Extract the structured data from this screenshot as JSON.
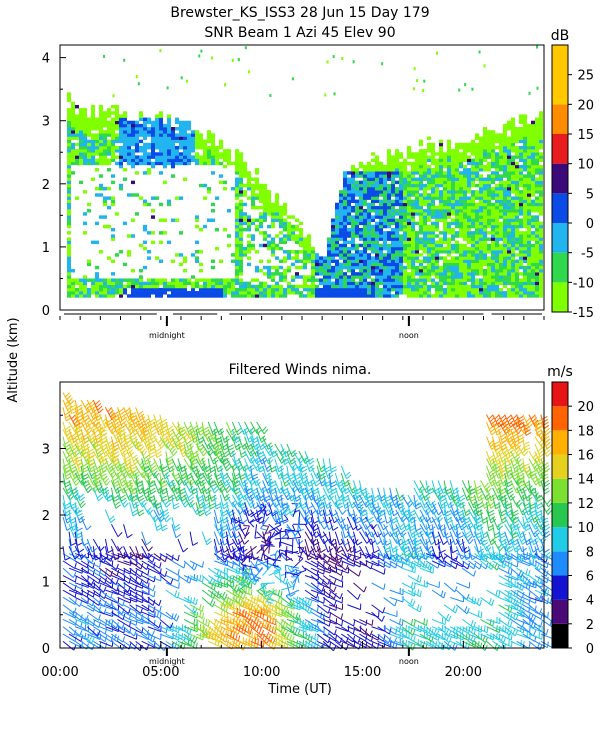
{
  "title": {
    "line1": "Brewster_KS_ISS3  28 Jun 15 Day 179",
    "line2": "SNR Beam 1 Azi  45 Elev 90"
  },
  "shared_ylabel": "Altitude (km)",
  "colors": {
    "snr": [
      "#7fff00",
      "#2fd84c",
      "#22b4ee",
      "#0a4be8",
      "#3a0a78",
      "#e81c1c",
      "#ff8c00",
      "#ffc800"
    ],
    "wind": [
      "#000000",
      "#4a0a78",
      "#1414d2",
      "#1e8cff",
      "#20cce6",
      "#28c850",
      "#7ce030",
      "#e6d21e",
      "#ffb000",
      "#ff6400",
      "#e61414"
    ]
  },
  "chart_data": [
    {
      "type": "heatmap",
      "title": "SNR Beam 1 Azi  45 Elev 90",
      "ylabel": "Altitude (km)",
      "xlim": [
        0,
        24
      ],
      "ylim": [
        0,
        4.2
      ],
      "y_ticks": [
        0,
        1,
        2,
        3,
        4
      ],
      "x_markers": [
        {
          "label": "midnight",
          "x": 5.3
        },
        {
          "label": "noon",
          "x": 17.3
        }
      ],
      "colorbar": {
        "units": "dB",
        "range": [
          -15,
          30
        ],
        "ticks": [
          -15,
          -10,
          -5,
          0,
          5,
          10,
          15,
          20,
          25
        ]
      },
      "echo_top_km": {
        "x": [
          0,
          1,
          3,
          4,
          6,
          7,
          8,
          9,
          10,
          11,
          12,
          13,
          14,
          15,
          17,
          18,
          19,
          20,
          21,
          22,
          23,
          24
        ],
        "y": [
          3.4,
          3.2,
          3.1,
          3.0,
          3.0,
          2.8,
          2.6,
          2.4,
          2.0,
          1.6,
          1.2,
          0.8,
          2.2,
          2.3,
          2.5,
          2.6,
          2.6,
          2.7,
          2.8,
          2.9,
          3.0,
          3.0
        ]
      }
    },
    {
      "type": "barbs",
      "title": "Filtered Winds nima.",
      "xlabel": "Time (UT)",
      "xlim": [
        0,
        24
      ],
      "ylim": [
        0,
        4
      ],
      "y_ticks": [
        0,
        1,
        2,
        3
      ],
      "x_ticks": [
        0,
        5,
        10,
        15,
        20
      ],
      "x_tick_labels": [
        "00:00",
        "05:00",
        "10:00",
        "15:00",
        "20:00"
      ],
      "x_markers": [
        {
          "label": "midnight",
          "x": 5.3
        },
        {
          "label": "noon",
          "x": 17.3
        }
      ],
      "colorbar": {
        "units": "m/s",
        "range": [
          0,
          22
        ],
        "ticks": [
          0,
          2,
          4,
          6,
          8,
          10,
          12,
          14,
          16,
          18,
          20
        ]
      },
      "speed_grid_ms": {
        "x": [
          1,
          3,
          5,
          7,
          9,
          10,
          11,
          13,
          15,
          17,
          19,
          21,
          23
        ],
        "heights_km": [
          0.5,
          1.5,
          2.5,
          3.5
        ],
        "values": [
          [
            7,
            6,
            7,
            15,
            19,
            18,
            12,
            5,
            4,
            10,
            9,
            10,
            7
          ],
          [
            5,
            3,
            5,
            6,
            3,
            2,
            5,
            3,
            5,
            9,
            4,
            9,
            7
          ],
          [
            11,
            12,
            10,
            11,
            9,
            8,
            9,
            9,
            9,
            9,
            10,
            12,
            11
          ],
          [
            17,
            17,
            16,
            13,
            11,
            10,
            10,
            10,
            9,
            9,
            11,
            19,
            18
          ]
        ]
      }
    }
  ]
}
